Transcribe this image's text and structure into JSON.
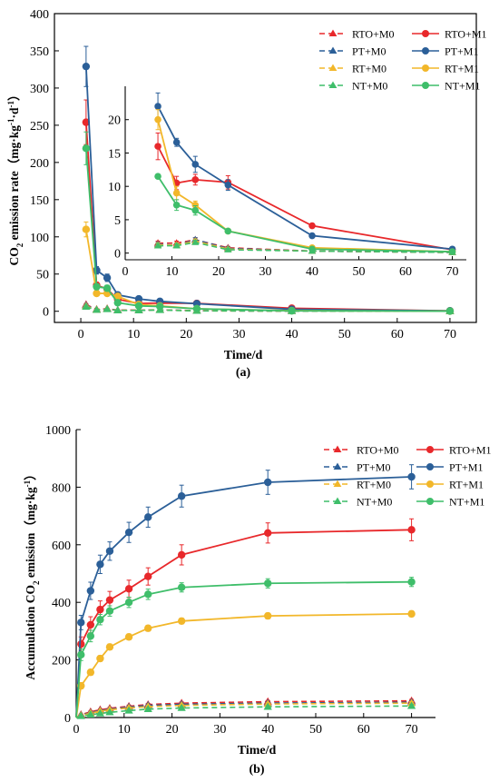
{
  "chart_data": [
    {
      "type": "line",
      "panel_label": "(a)",
      "xlabel": "Time/d",
      "ylabel_main": "CO",
      "ylabel_sub": "2",
      "ylabel_rest": " emission rate（mg·kg",
      "ylabel_sup1": "-1",
      "ylabel_mid": "·d",
      "ylabel_sup2": "-1",
      "ylabel_end": "）",
      "xlim": [
        -5,
        75
      ],
      "ylim": [
        -15,
        400
      ],
      "xticks": [
        0,
        10,
        20,
        30,
        40,
        50,
        60,
        70
      ],
      "yticks": [
        0,
        50,
        100,
        150,
        200,
        250,
        300,
        350,
        400
      ],
      "legend_position": "top-right",
      "series": [
        {
          "name": "RTO+M0",
          "key": "RTO_M0",
          "color": "#e8282b",
          "dashed": true,
          "marker": "triangle",
          "x": [
            1,
            3,
            5,
            7,
            11,
            15,
            22,
            40,
            70
          ],
          "y": [
            9,
            2.5,
            3.5,
            1.5,
            1.5,
            2,
            0.8,
            0.3,
            0.1
          ],
          "err": [
            1,
            0.5,
            0.5,
            0.3,
            0.3,
            0.3,
            0.2,
            0.1,
            0.05
          ]
        },
        {
          "name": "PT+M0",
          "key": "PT_M0",
          "color": "#2b5f98",
          "dashed": true,
          "marker": "triangle",
          "x": [
            1,
            3,
            5,
            7,
            11,
            15,
            22,
            40,
            70
          ],
          "y": [
            8,
            2,
            3,
            1.3,
            1.2,
            2,
            0.7,
            0.3,
            0.1
          ],
          "err": [
            1,
            0.4,
            0.5,
            0.3,
            0.3,
            0.3,
            0.2,
            0.1,
            0.05
          ]
        },
        {
          "name": "RT+M0",
          "key": "RT_M0",
          "color": "#f2b72a",
          "dashed": true,
          "marker": "triangle",
          "x": [
            1,
            3,
            5,
            7,
            11,
            15,
            22,
            40,
            70
          ],
          "y": [
            7,
            2,
            3,
            1.2,
            1.2,
            1.8,
            0.6,
            0.3,
            0.1
          ],
          "err": [
            1,
            0.4,
            0.5,
            0.3,
            0.3,
            0.3,
            0.2,
            0.1,
            0.05
          ]
        },
        {
          "name": "NT+M0",
          "key": "NT_M0",
          "color": "#3fbe6a",
          "dashed": true,
          "marker": "triangle",
          "x": [
            1,
            3,
            5,
            7,
            11,
            15,
            22,
            40,
            70
          ],
          "y": [
            6,
            1.8,
            2.8,
            1.1,
            1.1,
            1.6,
            0.5,
            0.3,
            0.1
          ],
          "err": [
            1,
            0.4,
            0.5,
            0.3,
            0.3,
            0.3,
            0.2,
            0.1,
            0.05
          ]
        },
        {
          "name": "RTO+M1",
          "key": "RTO_M1",
          "color": "#e8282b",
          "dashed": false,
          "marker": "circle",
          "x": [
            1,
            3,
            5,
            7,
            11,
            15,
            22,
            40,
            70
          ],
          "y": [
            254,
            35,
            30,
            16,
            10.5,
            11,
            10.6,
            4.1,
            0.5
          ],
          "err": [
            30,
            4,
            4,
            2,
            1,
            0.8,
            1,
            0.3,
            0.2
          ]
        },
        {
          "name": "PT+M1",
          "key": "PT_M1",
          "color": "#2b5f98",
          "dashed": false,
          "marker": "circle",
          "x": [
            1,
            3,
            5,
            7,
            11,
            15,
            22,
            40,
            70
          ],
          "y": [
            329,
            55,
            45,
            22,
            16.6,
            13.3,
            10.2,
            2.6,
            0.6
          ],
          "err": [
            27,
            5,
            5,
            2,
            0.6,
            1.2,
            0.8,
            0.2,
            0.1
          ]
        },
        {
          "name": "RT+M1",
          "key": "RT_M1",
          "color": "#f2b72a",
          "dashed": false,
          "marker": "circle",
          "x": [
            1,
            3,
            5,
            7,
            11,
            15,
            22,
            40,
            70
          ],
          "y": [
            110,
            24,
            24,
            20,
            9,
            7.2,
            3.3,
            0.8,
            0.2
          ],
          "err": [
            10,
            3,
            3,
            1.5,
            1,
            0.6,
            0.3,
            0.1,
            0.05
          ]
        },
        {
          "name": "NT+M1",
          "key": "NT_M1",
          "color": "#3fbe6a",
          "dashed": false,
          "marker": "circle",
          "x": [
            1,
            3,
            5,
            7,
            11,
            15,
            22,
            40,
            70
          ],
          "y": [
            219,
            33,
            31,
            11.5,
            7.2,
            6.4,
            3.3,
            0.6,
            0.2
          ],
          "err": [
            22,
            4,
            4,
            0.3,
            0.8,
            0.7,
            0.2,
            0.05,
            0.05
          ]
        }
      ],
      "inset": {
        "xlim": [
          0,
          73
        ],
        "ylim": [
          -1,
          25
        ],
        "xticks": [
          0,
          10,
          20,
          30,
          40,
          50,
          60,
          70
        ],
        "yticks": [
          0,
          5,
          10,
          15,
          20
        ],
        "x_from": 7
      }
    },
    {
      "type": "line",
      "panel_label": "(b)",
      "xlabel": "Time/d",
      "ylabel_main": "Accumulation CO",
      "ylabel_sub": "2",
      "ylabel_rest": " emission（mg·kg",
      "ylabel_sup1": "-1",
      "ylabel_end": "）",
      "xlim": [
        0,
        75
      ],
      "ylim": [
        0,
        1000
      ],
      "xticks": [
        0,
        10,
        20,
        30,
        40,
        50,
        60,
        70
      ],
      "yticks": [
        0,
        200,
        400,
        600,
        800,
        1000
      ],
      "legend_position": "top-right",
      "series": [
        {
          "name": "RTO+M0",
          "key": "RTO_M0",
          "color": "#e8282b",
          "dashed": true,
          "marker": "triangle",
          "x": [
            0,
            1,
            3,
            5,
            7,
            11,
            15,
            22,
            40,
            70
          ],
          "y": [
            0,
            10,
            20,
            27,
            32,
            39,
            45,
            50,
            55,
            58
          ],
          "err": [
            0,
            2,
            3,
            3,
            3,
            4,
            4,
            4,
            4,
            5
          ]
        },
        {
          "name": "PT+M0",
          "key": "PT_M0",
          "color": "#2b5f98",
          "dashed": true,
          "marker": "triangle",
          "x": [
            0,
            1,
            3,
            5,
            7,
            11,
            15,
            22,
            40,
            70
          ],
          "y": [
            0,
            8,
            17,
            24,
            29,
            36,
            42,
            46,
            50,
            53
          ],
          "err": [
            0,
            2,
            3,
            3,
            3,
            4,
            4,
            4,
            4,
            5
          ]
        },
        {
          "name": "RT+M0",
          "key": "RT_M0",
          "color": "#f2b72a",
          "dashed": true,
          "marker": "triangle",
          "x": [
            0,
            1,
            3,
            5,
            7,
            11,
            15,
            22,
            40,
            70
          ],
          "y": [
            0,
            7,
            15,
            22,
            27,
            33,
            38,
            42,
            47,
            50
          ],
          "err": [
            0,
            2,
            3,
            3,
            3,
            4,
            4,
            4,
            4,
            5
          ]
        },
        {
          "name": "NT+M0",
          "key": "NT_M0",
          "color": "#3fbe6a",
          "dashed": true,
          "marker": "triangle",
          "x": [
            0,
            1,
            3,
            5,
            7,
            11,
            15,
            22,
            40,
            70
          ],
          "y": [
            0,
            5,
            10,
            14,
            18,
            24,
            29,
            33,
            37,
            40
          ],
          "err": [
            0,
            2,
            3,
            3,
            3,
            4,
            4,
            4,
            4,
            5
          ]
        },
        {
          "name": "RTO+M1",
          "key": "RTO_M1",
          "color": "#e8282b",
          "dashed": false,
          "marker": "circle",
          "x": [
            0,
            1,
            3,
            5,
            7,
            11,
            15,
            22,
            40,
            70
          ],
          "y": [
            0,
            255,
            322,
            375,
            408,
            447,
            490,
            565,
            641,
            652
          ],
          "err": [
            0,
            25,
            28,
            30,
            30,
            30,
            30,
            35,
            35,
            38
          ]
        },
        {
          "name": "PT+M1",
          "key": "PT_M1",
          "color": "#2b5f98",
          "dashed": false,
          "marker": "circle",
          "x": [
            0,
            1,
            3,
            5,
            7,
            11,
            15,
            22,
            40,
            70
          ],
          "y": [
            0,
            330,
            440,
            532,
            578,
            643,
            696,
            769,
            817,
            836
          ],
          "err": [
            0,
            25,
            30,
            32,
            32,
            35,
            35,
            38,
            42,
            42
          ]
        },
        {
          "name": "RT+M1",
          "key": "RT_M1",
          "color": "#f2b72a",
          "dashed": false,
          "marker": "circle",
          "x": [
            0,
            1,
            3,
            5,
            7,
            11,
            15,
            22,
            40,
            70
          ],
          "y": [
            0,
            110,
            157,
            205,
            245,
            280,
            310,
            335,
            353,
            360
          ],
          "err": [
            0,
            10,
            10,
            10,
            10,
            10,
            10,
            10,
            10,
            10
          ]
        },
        {
          "name": "NT+M1",
          "key": "NT_M1",
          "color": "#3fbe6a",
          "dashed": false,
          "marker": "circle",
          "x": [
            0,
            1,
            3,
            5,
            7,
            11,
            15,
            22,
            40,
            70
          ],
          "y": [
            0,
            218,
            283,
            340,
            370,
            400,
            428,
            452,
            466,
            471
          ],
          "err": [
            0,
            20,
            20,
            18,
            18,
            18,
            18,
            16,
            16,
            16
          ]
        }
      ]
    }
  ]
}
